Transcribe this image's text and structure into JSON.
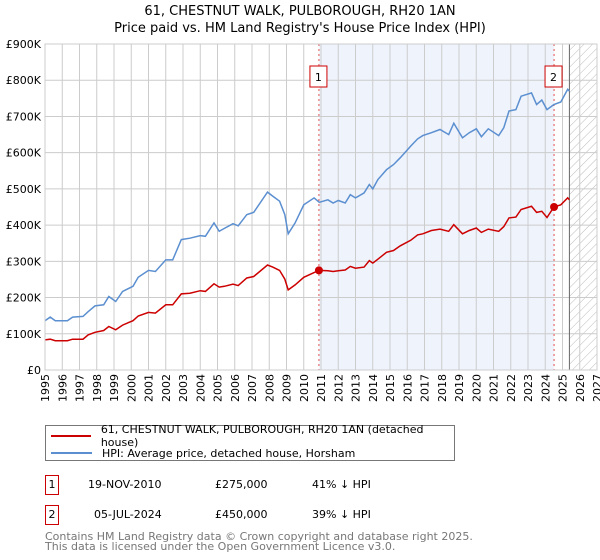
{
  "title": "61, CHESTNUT WALK, PULBOROUGH, RH20 1AN",
  "subtitle": "Price paid vs. HM Land Registry's House Price Index (HPI)",
  "colors": {
    "property": "#cc0000",
    "hpi": "#5b8fd0",
    "shade": "#eef3fc"
  },
  "chart_data": {
    "type": "line",
    "title": "61, CHESTNUT WALK, PULBOROUGH, RH20 1AN",
    "xlim": [
      1995,
      2027
    ],
    "ylim": [
      0,
      900000
    ],
    "y_ticks": [
      0,
      100000,
      200000,
      300000,
      400000,
      500000,
      600000,
      700000,
      800000,
      900000
    ],
    "y_tick_labels": [
      "£0",
      "£100K",
      "£200K",
      "£300K",
      "£400K",
      "£500K",
      "£600K",
      "£700K",
      "£800K",
      "£900K"
    ],
    "x_ticks": [
      1995,
      1996,
      1997,
      1998,
      1999,
      2000,
      2001,
      2002,
      2003,
      2004,
      2005,
      2006,
      2007,
      2008,
      2009,
      2010,
      2011,
      2012,
      2013,
      2014,
      2015,
      2016,
      2017,
      2018,
      2019,
      2020,
      2021,
      2022,
      2023,
      2024,
      2025,
      2026,
      2027
    ],
    "grid": true,
    "forecast_start": 2025.4,
    "x": [
      1995.0,
      1995.3,
      1995.6,
      1996.3,
      1996.6,
      1997.2,
      1997.5,
      1997.9,
      1998.4,
      1998.7,
      1999.1,
      1999.5,
      2000.1,
      2000.4,
      2001.0,
      2001.4,
      2002.0,
      2002.4,
      2002.9,
      2003.4,
      2004.0,
      2004.3,
      2004.8,
      2005.1,
      2005.4,
      2005.9,
      2006.2,
      2006.7,
      2007.1,
      2007.9,
      2008.2,
      2008.6,
      2008.9,
      2009.1,
      2009.5,
      2010.0,
      2010.6,
      2010.9,
      2011.4,
      2011.7,
      2012.0,
      2012.4,
      2012.7,
      2013.0,
      2013.5,
      2013.8,
      2014.0,
      2014.3,
      2014.8,
      2015.2,
      2015.6,
      2016.2,
      2016.6,
      2016.9,
      2017.4,
      2017.9,
      2018.4,
      2018.7,
      2019.2,
      2019.6,
      2020.0,
      2020.3,
      2020.7,
      2021.3,
      2021.6,
      2021.9,
      2022.3,
      2022.6,
      2023.2,
      2023.5,
      2023.8,
      2024.1,
      2024.5,
      2024.9,
      2025.3,
      2025.4
    ],
    "series": [
      {
        "name": "61, CHESTNUT WALK, PULBOROUGH, RH20 1AN (detached house)",
        "color": "#cc0000",
        "values": [
          83,
          85,
          81,
          81,
          85,
          85,
          97,
          104,
          109,
          120,
          111,
          124,
          136,
          149,
          159,
          157,
          180,
          180,
          210,
          212,
          219,
          217,
          238,
          229,
          231,
          237,
          233,
          254,
          258,
          290,
          284,
          275,
          251,
          221,
          235,
          256,
          269,
          275,
          274,
          272,
          274,
          276,
          286,
          281,
          284,
          302,
          295,
          306,
          325,
          330,
          343,
          358,
          373,
          376,
          385,
          389,
          383,
          401,
          376,
          385,
          392,
          380,
          389,
          383,
          396,
          420,
          422,
          443,
          452,
          435,
          438,
          421,
          450,
          456,
          475,
          470
        ]
      },
      {
        "name": "HPI: Average price, detached house, Horsham",
        "color": "#5b8fd0",
        "values": [
          136,
          146,
          136,
          136,
          146,
          148,
          161,
          177,
          180,
          203,
          189,
          217,
          231,
          256,
          275,
          272,
          304,
          304,
          360,
          364,
          371,
          369,
          406,
          383,
          391,
          404,
          398,
          429,
          435,
          491,
          480,
          466,
          429,
          376,
          406,
          456,
          475,
          463,
          470,
          461,
          468,
          461,
          484,
          475,
          489,
          512,
          500,
          526,
          553,
          567,
          586,
          618,
          638,
          647,
          655,
          664,
          650,
          681,
          641,
          655,
          666,
          644,
          666,
          647,
          669,
          715,
          719,
          756,
          765,
          733,
          745,
          719,
          733,
          740,
          775,
          770
        ]
      }
    ],
    "value_unit": "thousand GBP",
    "sales": [
      {
        "label": "1",
        "year": 2010.88,
        "value": 275000
      },
      {
        "label": "2",
        "year": 2024.51,
        "value": 450000
      }
    ]
  },
  "legend": {
    "property": "61, CHESTNUT WALK, PULBOROUGH, RH20 1AN (detached house)",
    "hpi": "HPI: Average price, detached house, Horsham"
  },
  "transactions": [
    {
      "num": "1",
      "date": "19-NOV-2010",
      "price": "£275,000",
      "delta": "41% ↓ HPI"
    },
    {
      "num": "2",
      "date": "05-JUL-2024",
      "price": "£450,000",
      "delta": "39% ↓ HPI"
    }
  ],
  "footer": [
    "Contains HM Land Registry data © Crown copyright and database right 2025.",
    "This data is licensed under the Open Government Licence v3.0."
  ]
}
